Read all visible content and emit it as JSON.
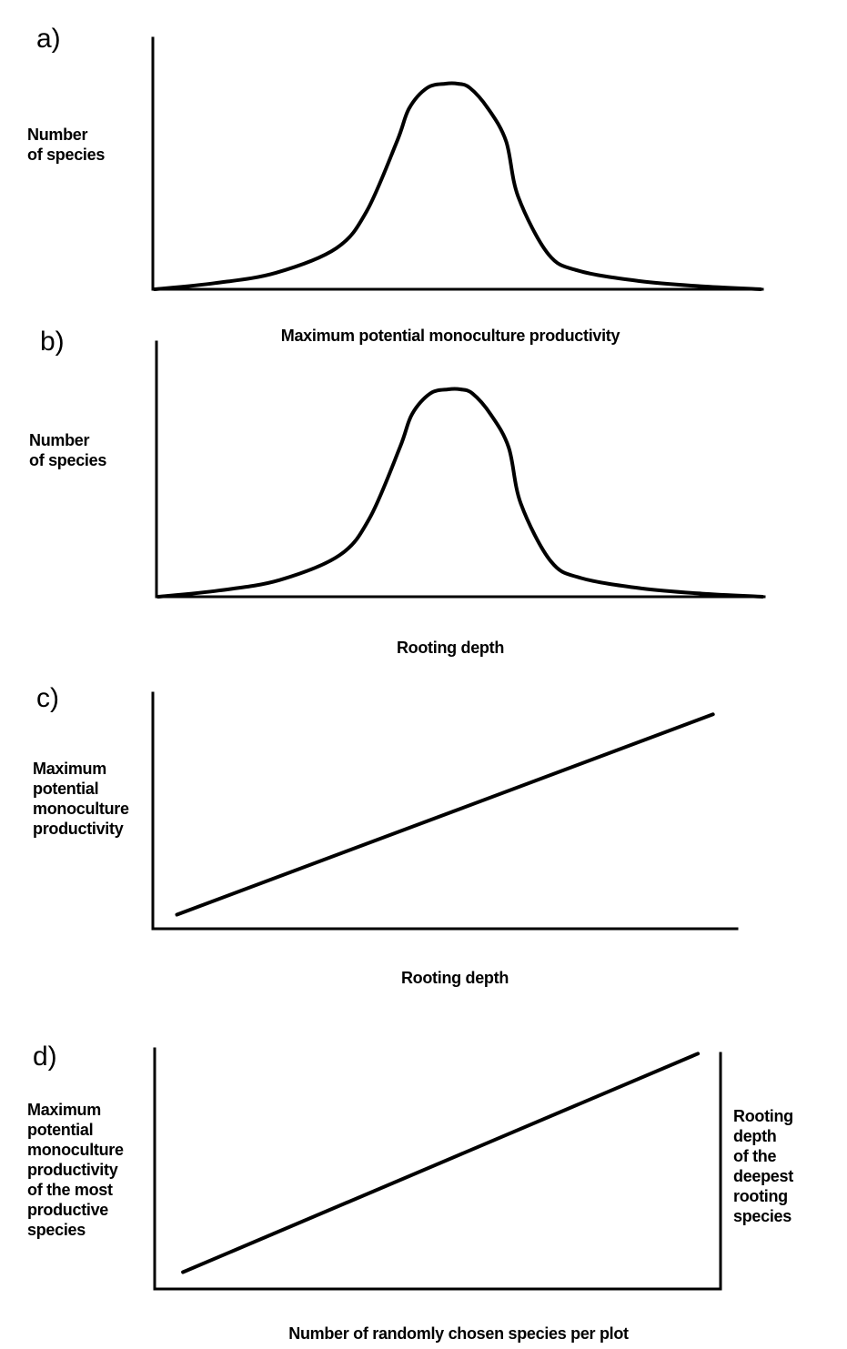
{
  "chart_data": [
    {
      "panel": "a)",
      "type": "line",
      "xlabel": "Maximum potential monoculture productivity",
      "ylabel": [
        "Number",
        "of species"
      ],
      "x": [
        0,
        10,
        20,
        30,
        35,
        40,
        42,
        45,
        48,
        50,
        52,
        55,
        58,
        60,
        65,
        70,
        80,
        90,
        100
      ],
      "y": [
        0,
        3,
        8,
        20,
        38,
        72,
        88,
        98,
        100,
        100,
        98,
        88,
        72,
        45,
        17,
        9,
        4,
        1.5,
        0
      ],
      "xlim": [
        0,
        100
      ],
      "ylim": [
        0,
        100
      ]
    },
    {
      "panel": "b)",
      "type": "line",
      "xlabel": "Rooting depth",
      "ylabel": [
        "Number",
        "of species"
      ],
      "x": [
        0,
        10,
        20,
        30,
        35,
        40,
        42,
        45,
        48,
        50,
        52,
        55,
        58,
        60,
        65,
        70,
        80,
        90,
        100
      ],
      "y": [
        0,
        3,
        8,
        20,
        38,
        72,
        88,
        98,
        100,
        100,
        98,
        88,
        72,
        45,
        17,
        9,
        4,
        1.5,
        0
      ],
      "xlim": [
        0,
        100
      ],
      "ylim": [
        0,
        100
      ]
    },
    {
      "panel": "c)",
      "type": "line",
      "xlabel": "Rooting depth",
      "ylabel": [
        "Maximum",
        "potential",
        "monoculture",
        "productivity"
      ],
      "x": [
        4,
        93
      ],
      "y": [
        6,
        91
      ],
      "xlim": [
        0,
        100
      ],
      "ylim": [
        0,
        100
      ]
    },
    {
      "panel": "d)",
      "type": "line",
      "xlabel": "Number of randomly chosen species per plot",
      "ylabel": [
        "Maximum",
        "potential",
        "monoculture",
        "productivity",
        "of the most",
        "productive",
        "species"
      ],
      "y2label": [
        "Rooting",
        "depth",
        "of the",
        "deepest",
        "rooting",
        "species"
      ],
      "x": [
        5,
        96
      ],
      "y": [
        7,
        98
      ],
      "xlim": [
        0,
        100
      ],
      "ylim": [
        0,
        100
      ]
    }
  ]
}
